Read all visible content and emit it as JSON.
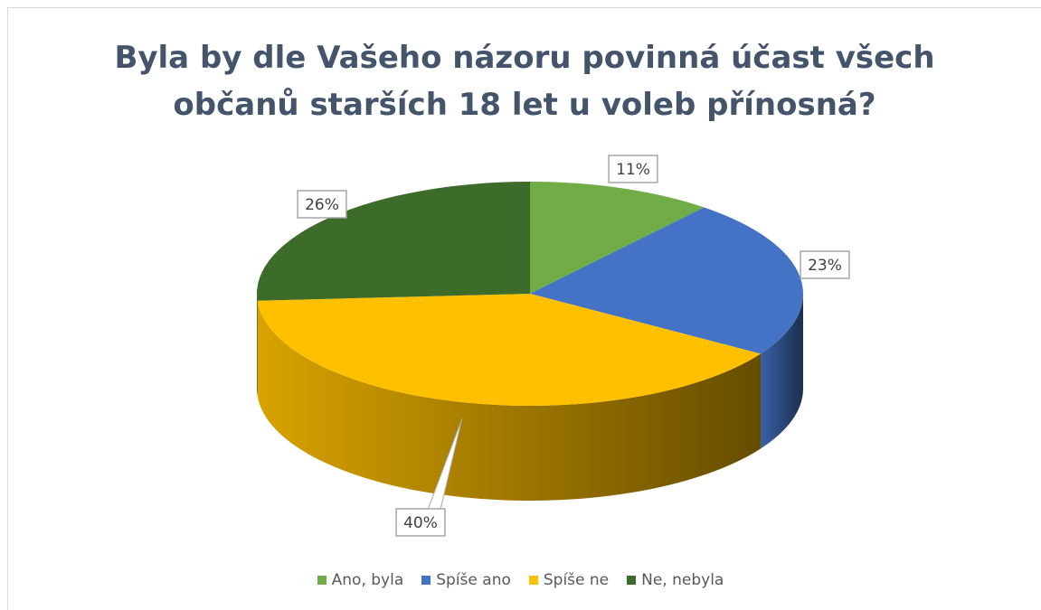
{
  "chart_data": {
    "type": "pie",
    "title": "Byla by dle Vašeho názoru povinná účast všech občanů starších 18 let u voleb přínosná?",
    "categories": [
      "Ano, byla",
      "Spíše ano",
      "Spíše ne",
      "Ne, nebyla"
    ],
    "values": [
      11,
      23,
      40,
      26
    ],
    "value_labels": [
      "11%",
      "23%",
      "40%",
      "26%"
    ],
    "colors": [
      "#70ad47",
      "#4472c4",
      "#ffc000",
      "#3d6b2a"
    ],
    "legend": "bottom"
  }
}
